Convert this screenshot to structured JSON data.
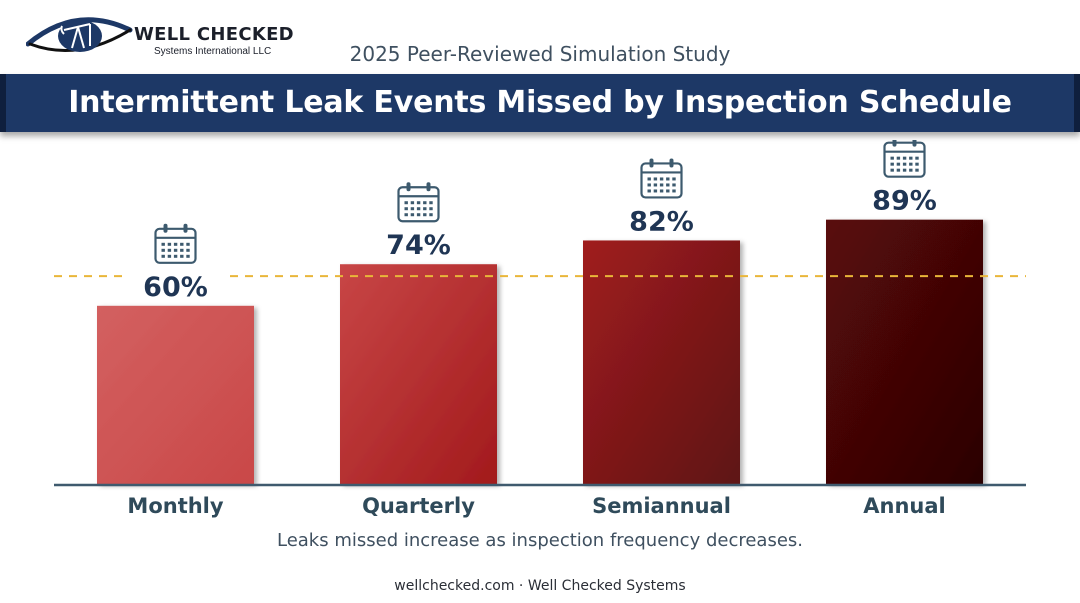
{
  "logo": {
    "name": "WELL CHECKED",
    "tagline": "Systems International LLC"
  },
  "subtitle": "2025 Peer-Reviewed Simulation Study",
  "title": "Intermittent Leak Events Missed by Inspection Schedule",
  "caption": "Leaks missed increase as inspection frequency decreases.",
  "footer": "wellchecked.com · Well Checked Systems",
  "colors": {
    "banner": "#1d3866",
    "accent_line": "#e9b63a",
    "axis": "#3f5a6e",
    "label_dark": "#1f3554",
    "category_label": "#2f4a5a"
  },
  "icons": {
    "bar_marker": "calendar-icon"
  },
  "chart_data": {
    "type": "bar",
    "categories": [
      "Monthly",
      "Quarterly",
      "Semiannual",
      "Annual"
    ],
    "values": [
      60,
      74,
      82,
      89
    ],
    "value_labels": [
      "60%",
      "74%",
      "82%",
      "89%"
    ],
    "bar_colors": [
      [
        "#d36060",
        "#c94848"
      ],
      [
        "#c84646",
        "#a21a1c"
      ],
      [
        "#a01c1e",
        "#5e1414"
      ],
      [
        "#5a0808",
        "#2a0404"
      ]
    ],
    "reference_line": 70,
    "ylim": [
      0,
      100
    ],
    "grid": false,
    "legend": "none",
    "title": "",
    "xlabel": "",
    "ylabel": ""
  }
}
